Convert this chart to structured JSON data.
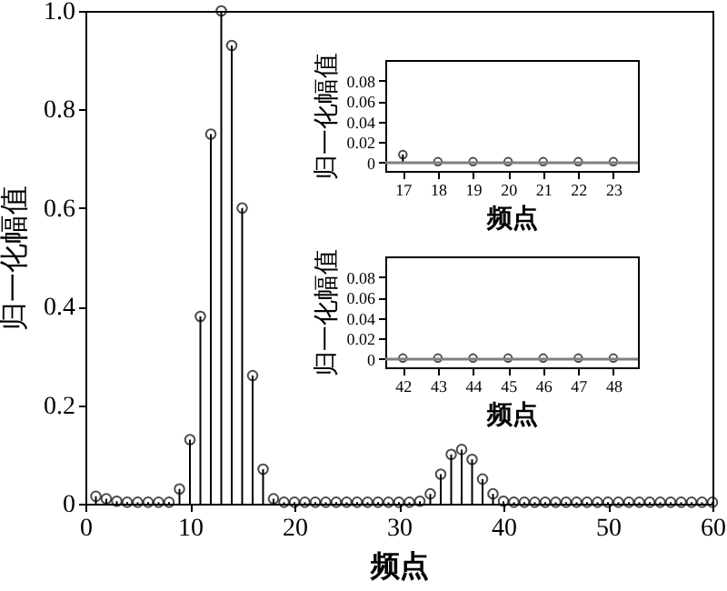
{
  "chart_data": [
    {
      "type": "lollipop",
      "xlabel": "频点",
      "ylabel": "归一化幅值",
      "marker": "circle",
      "xlim": [
        0,
        60
      ],
      "xticks": [
        0,
        10,
        20,
        30,
        40,
        50,
        60
      ],
      "ylim": [
        0,
        1
      ],
      "yticks": [
        0,
        {
          "value": 0.2,
          "label": "0.2"
        },
        {
          "value": 0.4,
          "label": "0.4"
        },
        {
          "value": 0.6,
          "label": "0.6"
        },
        {
          "value": 0.8,
          "label": "0.8"
        },
        {
          "value": 1,
          "label": "1.0"
        }
      ],
      "x": [
        1,
        2,
        3,
        4,
        5,
        6,
        7,
        8,
        9,
        10,
        11,
        12,
        13,
        14,
        15,
        16,
        17,
        18,
        19,
        20,
        21,
        22,
        23,
        24,
        25,
        26,
        27,
        28,
        29,
        30,
        31,
        32,
        33,
        34,
        35,
        36,
        37,
        38,
        39,
        40,
        41,
        42,
        43,
        44,
        45,
        46,
        47,
        48,
        49,
        50,
        51,
        52,
        53,
        54,
        55,
        56,
        57,
        58,
        59,
        60
      ],
      "series": [
        {
          "color": "#000000",
          "values": [
            0.015,
            0.01,
            0.005,
            0.003,
            0.003,
            0.003,
            0.003,
            0.003,
            0.03,
            0.13,
            0.38,
            0.75,
            1.0,
            0.93,
            0.6,
            0.26,
            0.07,
            0.01,
            0.003,
            0.003,
            0.003,
            0.003,
            0.003,
            0.003,
            0.003,
            0.003,
            0.003,
            0.003,
            0.003,
            0.003,
            0.003,
            0.005,
            0.02,
            0.06,
            0.1,
            0.11,
            0.09,
            0.05,
            0.02,
            0.005,
            0.003,
            0.003,
            0.003,
            0.003,
            0.003,
            0.003,
            0.003,
            0.003,
            0.003,
            0.003,
            0.003,
            0.003,
            0.003,
            0.003,
            0.003,
            0.003,
            0.003,
            0.003,
            0.003,
            0.003
          ]
        }
      ]
    },
    {
      "type": "lollipop",
      "xlabel": "频点",
      "ylabel": "归一化幅值",
      "marker": "circle",
      "xlim": [
        16.5,
        23.7
      ],
      "xticks": [
        17,
        18,
        19,
        20,
        21,
        22,
        23
      ],
      "ylim": [
        -0.008,
        0.1
      ],
      "yticks": [
        0,
        0.02,
        0.04,
        0.06,
        0.08
      ],
      "x": [
        17,
        18,
        19,
        20,
        21,
        22,
        23
      ],
      "series": [
        {
          "color": "#000000",
          "values": [
            0.008,
            0.001,
            0.001,
            0.001,
            0.001,
            0.001,
            0.001
          ]
        }
      ],
      "ref_lines": [
        {
          "axis": "y",
          "value": 0,
          "color": "#808080"
        }
      ]
    },
    {
      "type": "lollipop",
      "xlabel": "频点",
      "ylabel": "归一化幅值",
      "marker": "circle",
      "xlim": [
        41.5,
        48.7
      ],
      "xticks": [
        42,
        43,
        44,
        45,
        46,
        47,
        48
      ],
      "ylim": [
        -0.008,
        0.1
      ],
      "yticks": [
        0,
        0.02,
        0.04,
        0.06,
        0.08
      ],
      "x": [
        42,
        43,
        44,
        45,
        46,
        47,
        48
      ],
      "series": [
        {
          "color": "#000000",
          "values": [
            0.001,
            0.001,
            0.001,
            0.001,
            0.001,
            0.001,
            0.001
          ]
        }
      ],
      "ref_lines": [
        {
          "axis": "y",
          "value": 0,
          "color": "#808080"
        }
      ]
    }
  ]
}
